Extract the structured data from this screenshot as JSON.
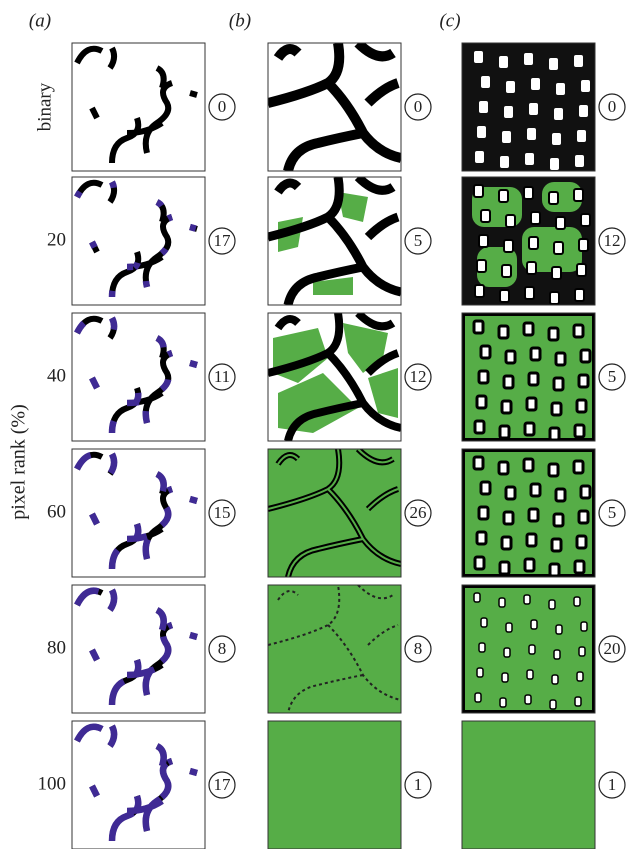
{
  "column_labels": [
    "(a)",
    "(b)",
    "(c)"
  ],
  "row_labels": [
    "binary",
    "20",
    "40",
    "60",
    "80",
    "100"
  ],
  "axis_label": "pixel rank (%)",
  "counts": [
    [
      0,
      0,
      0
    ],
    [
      17,
      5,
      12
    ],
    [
      11,
      12,
      5
    ],
    [
      15,
      26,
      5
    ],
    [
      8,
      8,
      20
    ],
    [
      17,
      1,
      1
    ]
  ]
}
